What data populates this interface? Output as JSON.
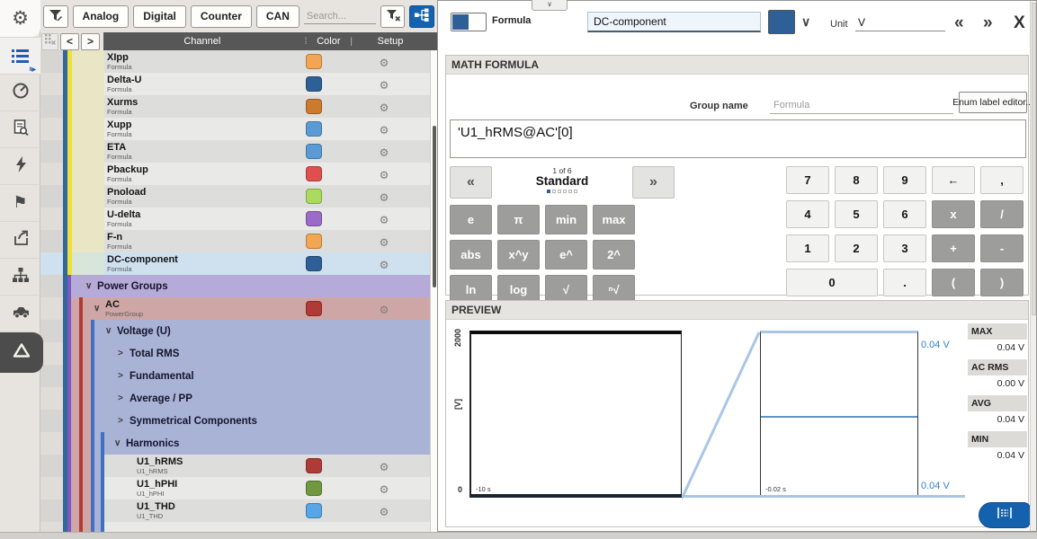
{
  "sidebar": {
    "icons": [
      {
        "name": "settings-gear-icon"
      },
      {
        "name": "channel-list-icon",
        "active": true
      },
      {
        "name": "measure-gauge-icon"
      },
      {
        "name": "setup-file-icon"
      },
      {
        "name": "trigger-lightning-icon"
      },
      {
        "name": "events-flag-icon"
      },
      {
        "name": "export-icon"
      },
      {
        "name": "network-tree-icon"
      },
      {
        "name": "vehicle-car-icon"
      },
      {
        "name": "delta-logo-icon",
        "dark": true
      }
    ]
  },
  "channel_panel": {
    "toolbar": {
      "filters": [
        "Analog",
        "Digital",
        "Counter",
        "CAN"
      ],
      "search_placeholder": "Search..."
    },
    "header": {
      "channel": "Channel",
      "color": "Color",
      "setup": "Setup",
      "dots": "⁞",
      "pipe": "|"
    },
    "rows": [
      {
        "type": "formula",
        "name": "XIpp",
        "sub": "Formula",
        "swatch": "#f2a654",
        "gear": true
      },
      {
        "type": "formula",
        "name": "Delta-U",
        "sub": "Formula",
        "swatch": "#2e5f97",
        "gear": true
      },
      {
        "type": "formula",
        "name": "Xurms",
        "sub": "Formula",
        "swatch": "#cc7a2e",
        "gear": true
      },
      {
        "type": "formula",
        "name": "Xupp",
        "sub": "Formula",
        "swatch": "#5b9bd5",
        "gear": true
      },
      {
        "type": "formula",
        "name": "ETA",
        "sub": "Formula",
        "swatch": "#5b9bd5",
        "gear": true
      },
      {
        "type": "formula",
        "name": "Pbackup",
        "sub": "Formula",
        "swatch": "#e04f4f",
        "gear": true
      },
      {
        "type": "formula",
        "name": "Pnoload",
        "sub": "Formula",
        "swatch": "#aadb5e",
        "gear": true
      },
      {
        "type": "formula",
        "name": "U-delta",
        "sub": "Formula",
        "swatch": "#9b6bc8",
        "gear": true
      },
      {
        "type": "formula",
        "name": "F-n",
        "sub": "Formula",
        "swatch": "#f2a654",
        "gear": true
      },
      {
        "type": "selected",
        "name": "DC-component",
        "sub": "Formula",
        "swatch": "#2e5f97",
        "gear": true
      },
      {
        "type": "group1",
        "name": "Power Groups",
        "chevron": "∨"
      },
      {
        "type": "group2",
        "name": "AC",
        "sub": "PowerGroup",
        "chevron": "∨",
        "swatch": "#b03a35",
        "gear": true
      },
      {
        "type": "group3",
        "name": "Voltage (U)",
        "chevron": "∨"
      },
      {
        "type": "group3s",
        "name": "Total RMS",
        "chevron": ">"
      },
      {
        "type": "group3s",
        "name": "Fundamental",
        "chevron": ">"
      },
      {
        "type": "group3s",
        "name": "Average / PP",
        "chevron": ">"
      },
      {
        "type": "group3s",
        "name": "Symmetrical Components",
        "chevron": ">"
      },
      {
        "type": "group4",
        "name": "Harmonics",
        "chevron": "∨"
      },
      {
        "type": "chan5",
        "name": "U1_hRMS",
        "sub": "U1_hRMS",
        "swatch": "#b03a35",
        "gear": true
      },
      {
        "type": "chan5",
        "name": "U1_hPHI",
        "sub": "U1_hPHI",
        "swatch": "#6f9940",
        "gear": true
      },
      {
        "type": "chan5",
        "name": "U1_THD",
        "sub": "U1_THD",
        "swatch": "#56a6e8",
        "gear": true
      },
      {
        "type": "chan5",
        "name": "",
        "sub": "",
        "swatch": null,
        "gear": false
      }
    ]
  },
  "editor": {
    "tab_chevron": "∨",
    "toggle_label": "Formula",
    "name_value": "DC-component",
    "color_value": "#2e5f97",
    "chevron_down": "∨",
    "unit_label": "Unit",
    "unit_value": "V",
    "prev_glyph": "«",
    "next_glyph": "»",
    "close_glyph": "X",
    "math_section_title": "MATH FORMULA",
    "group_name_label": "Group name",
    "group_name_placeholder": "Formula",
    "enum_button_label": "Enum label editor...",
    "formula_text": "'U1_hRMS@AC'[0]",
    "function_pad": {
      "prev": "«",
      "next": "»",
      "page": "1 of 6",
      "page_name": "Standard",
      "pages_total": 6,
      "active_page": 1,
      "keys": [
        [
          "e",
          "π",
          "min",
          "max"
        ],
        [
          "abs",
          "x^y",
          "e^",
          "2^"
        ],
        [
          "ln",
          "log",
          "√",
          "ⁿ√"
        ]
      ]
    },
    "numeric_pad": {
      "rows": [
        [
          "7",
          "8",
          "9",
          "←",
          ","
        ],
        [
          "4",
          "5",
          "6",
          "x",
          "/"
        ],
        [
          "1",
          "2",
          "3",
          "+",
          "-"
        ],
        [
          "0",
          ".",
          "(",
          ")"
        ]
      ],
      "operator_keys": [
        "x",
        "/",
        "+",
        "-",
        "(",
        ")"
      ]
    }
  },
  "preview": {
    "title": "PREVIEW",
    "chart_data": {
      "type": "line",
      "ylabel": "[V]",
      "overview": {
        "ylim": [
          0,
          2000
        ],
        "y_top_label": "2000",
        "y_bottom_label": "0",
        "x_label": "-10 s",
        "signal_value_v": 0.04
      },
      "zoomed": {
        "x_label": "-0.02 s",
        "y_top_label": "0.04 V",
        "y_bottom_label": "0.04 V",
        "signal_value_v": 0.04
      },
      "stats": [
        {
          "label": "MAX",
          "value": "0.04 V"
        },
        {
          "label": "AC RMS",
          "value": "0.00 V"
        },
        {
          "label": "AVG",
          "value": "0.04 V"
        },
        {
          "label": "MIN",
          "value": "0.04 V"
        }
      ]
    }
  }
}
